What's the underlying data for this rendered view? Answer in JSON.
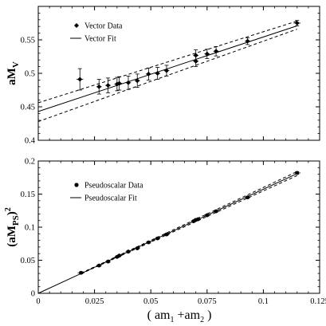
{
  "chart_data": [
    {
      "type": "scatter",
      "panel": "top",
      "ylabel_main": "aM",
      "ylabel_sub": "V",
      "xlim": [
        0,
        0.125
      ],
      "ylim": [
        0.4,
        0.6
      ],
      "yticks": [
        {
          "value": 0.4,
          "label": "0.4"
        },
        {
          "value": 0.45,
          "label": "0.45"
        },
        {
          "value": 0.5,
          "label": "0.5"
        },
        {
          "value": 0.55,
          "label": "0.55"
        }
      ],
      "legend": [
        "Vector Data",
        "Vector Fit"
      ],
      "legend_position": "top-left",
      "grid": false,
      "points": [
        {
          "x": 0.0185,
          "y": 0.491,
          "yerr": 0.016,
          "xerr": 0.0015
        },
        {
          "x": 0.027,
          "y": 0.48,
          "yerr": 0.011,
          "xerr": 0.0012
        },
        {
          "x": 0.031,
          "y": 0.482,
          "yerr": 0.011,
          "xerr": 0.0012
        },
        {
          "x": 0.035,
          "y": 0.484,
          "yerr": 0.01,
          "xerr": 0.0012
        },
        {
          "x": 0.036,
          "y": 0.485,
          "yerr": 0.01,
          "xerr": 0.0012
        },
        {
          "x": 0.04,
          "y": 0.486,
          "yerr": 0.01,
          "xerr": 0.0012
        },
        {
          "x": 0.044,
          "y": 0.489,
          "yerr": 0.01,
          "xerr": 0.0012
        },
        {
          "x": 0.049,
          "y": 0.499,
          "yerr": 0.009,
          "xerr": 0.0012
        },
        {
          "x": 0.053,
          "y": 0.5,
          "yerr": 0.009,
          "xerr": 0.0012
        },
        {
          "x": 0.057,
          "y": 0.504,
          "yerr": 0.008,
          "xerr": 0.0012
        },
        {
          "x": 0.07,
          "y": 0.527,
          "yerr": 0.008,
          "xerr": 0.0012
        },
        {
          "x": 0.07,
          "y": 0.518,
          "yerr": 0.008,
          "xerr": 0.0012
        },
        {
          "x": 0.075,
          "y": 0.529,
          "yerr": 0.007,
          "xerr": 0.0012
        },
        {
          "x": 0.079,
          "y": 0.533,
          "yerr": 0.007,
          "xerr": 0.0012
        },
        {
          "x": 0.093,
          "y": 0.548,
          "yerr": 0.005,
          "xerr": 0.0012
        },
        {
          "x": 0.115,
          "y": 0.575,
          "yerr": 0.004,
          "xerr": 0.0015
        }
      ],
      "fit": {
        "x": [
          0,
          0.115
        ],
        "y": [
          0.443,
          0.571
        ]
      },
      "fit_upper": {
        "x": [
          0,
          0.115
        ],
        "y": [
          0.456,
          0.578
        ]
      },
      "fit_lower": {
        "x": [
          0,
          0.115
        ],
        "y": [
          0.428,
          0.566
        ]
      }
    },
    {
      "type": "scatter",
      "panel": "bottom",
      "ylabel_main": "(aM",
      "ylabel_sub": "PS",
      "ylabel_tail": ")",
      "ylabel_sup": "2",
      "xlabel_open": "( am",
      "xlabel_sub1": "1",
      "xlabel_mid": " +am",
      "xlabel_sub2": "2",
      "xlabel_close": " )",
      "xlim": [
        0,
        0.125
      ],
      "ylim": [
        0,
        0.2
      ],
      "xticks": [
        {
          "value": 0,
          "label": "0"
        },
        {
          "value": 0.025,
          "label": "0.025"
        },
        {
          "value": 0.05,
          "label": "0.05"
        },
        {
          "value": 0.075,
          "label": "0.075"
        },
        {
          "value": 0.1,
          "label": "0.1"
        },
        {
          "value": 0.125,
          "label": "0.125"
        }
      ],
      "yticks": [
        {
          "value": 0,
          "label": "0"
        },
        {
          "value": 0.05,
          "label": "0.05"
        },
        {
          "value": 0.1,
          "label": "0.1"
        },
        {
          "value": 0.15,
          "label": "0.15"
        },
        {
          "value": 0.2,
          "label": "0.2"
        }
      ],
      "legend": [
        "Pseudoscalar Data",
        "Pseudoscalar Fit"
      ],
      "legend_position": "top-left",
      "grid": false,
      "points": [
        {
          "x": 0.019,
          "y": 0.031,
          "yerr": 0.0015,
          "xerr": 0.0015
        },
        {
          "x": 0.027,
          "y": 0.042,
          "yerr": 0.0012,
          "xerr": 0.0012
        },
        {
          "x": 0.031,
          "y": 0.048,
          "yerr": 0.0012,
          "xerr": 0.0012
        },
        {
          "x": 0.035,
          "y": 0.055,
          "yerr": 0.0012,
          "xerr": 0.0012
        },
        {
          "x": 0.036,
          "y": 0.057,
          "yerr": 0.0012,
          "xerr": 0.0012
        },
        {
          "x": 0.04,
          "y": 0.063,
          "yerr": 0.0012,
          "xerr": 0.0012
        },
        {
          "x": 0.044,
          "y": 0.068,
          "yerr": 0.0012,
          "xerr": 0.0012
        },
        {
          "x": 0.049,
          "y": 0.077,
          "yerr": 0.0012,
          "xerr": 0.0012
        },
        {
          "x": 0.053,
          "y": 0.083,
          "yerr": 0.0012,
          "xerr": 0.0012
        },
        {
          "x": 0.057,
          "y": 0.089,
          "yerr": 0.0012,
          "xerr": 0.0012
        },
        {
          "x": 0.069,
          "y": 0.109,
          "yerr": 0.0012,
          "xerr": 0.0012
        },
        {
          "x": 0.07,
          "y": 0.111,
          "yerr": 0.0012,
          "xerr": 0.0012
        },
        {
          "x": 0.071,
          "y": 0.112,
          "yerr": 0.0012,
          "xerr": 0.0012
        },
        {
          "x": 0.075,
          "y": 0.118,
          "yerr": 0.0012,
          "xerr": 0.0012
        },
        {
          "x": 0.079,
          "y": 0.124,
          "yerr": 0.0012,
          "xerr": 0.0012
        },
        {
          "x": 0.093,
          "y": 0.145,
          "yerr": 0.0015,
          "xerr": 0.0012
        },
        {
          "x": 0.115,
          "y": 0.182,
          "yerr": 0.002,
          "xerr": 0.0015
        }
      ],
      "fit": {
        "x": [
          0,
          0.115
        ],
        "y": [
          0,
          0.181
        ]
      },
      "fit_upper": {
        "x": [
          0.019,
          0.115
        ],
        "y": [
          0.0305,
          0.184
        ]
      },
      "fit_lower": {
        "x": [
          0.019,
          0.115
        ],
        "y": [
          0.0295,
          0.178
        ]
      }
    }
  ]
}
